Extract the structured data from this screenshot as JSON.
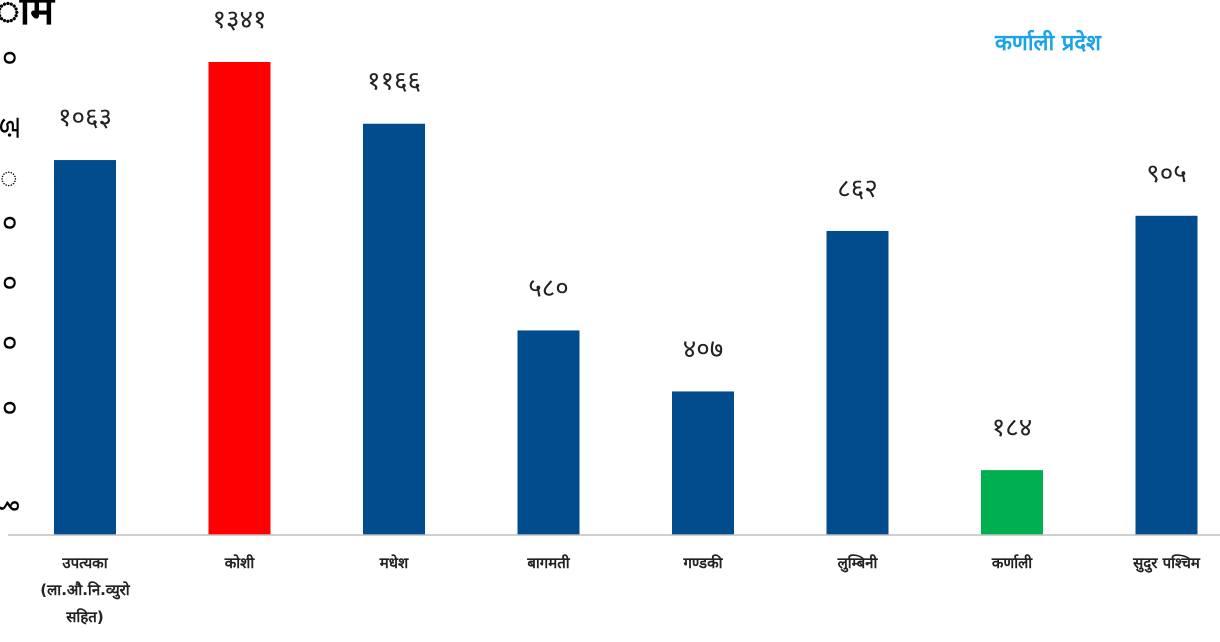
{
  "top_left_fragment": "ाम",
  "left_edge_glyphs": [
    "०",
    "ङ",
    "्",
    "०",
    "०",
    "०",
    "०",
    "१"
  ],
  "legend_note": "कर्णाली प्रदेश",
  "colors": {
    "default": "#004c8c",
    "highlight_max": "#ff0000",
    "highlight_min": "#00b050",
    "axis": "#bfbfbf"
  },
  "chart_data": {
    "type": "bar",
    "categories": [
      [
        "उपत्यका",
        "(ला.औ.नि.व्युरो",
        "सहित)"
      ],
      [
        "कोशी"
      ],
      [
        "मधेश"
      ],
      [
        "बागमती"
      ],
      [
        "गण्डकी"
      ],
      [
        "लुम्बिनी"
      ],
      [
        "कर्णाली"
      ],
      [
        "सुदुर पश्चिम"
      ]
    ],
    "values": [
      1063,
      1341,
      1166,
      580,
      407,
      862,
      184,
      905
    ],
    "value_labels": [
      "१०६३",
      "१३४१",
      "११६६",
      "५८०",
      "४०७",
      "८६२",
      "१८४",
      "९०५"
    ],
    "bar_colors": [
      "#004c8c",
      "#ff0000",
      "#004c8c",
      "#004c8c",
      "#004c8c",
      "#004c8c",
      "#00b050",
      "#004c8c"
    ],
    "ylim": [
      0,
      1341
    ],
    "grid": false,
    "title": "",
    "xlabel": "",
    "ylabel": ""
  }
}
